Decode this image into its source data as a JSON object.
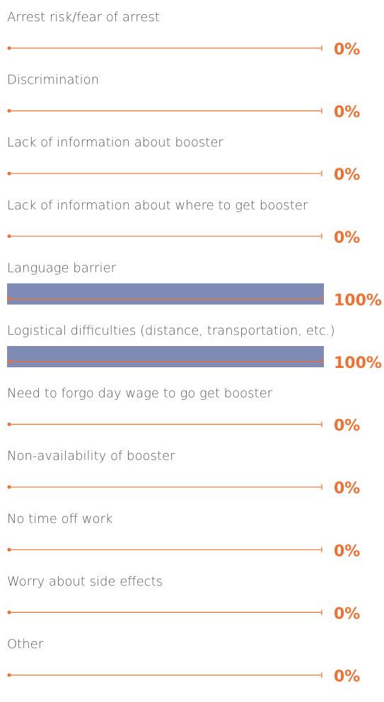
{
  "chart_data": {
    "type": "bar",
    "categories": [
      "Arrest risk/fear of arrest",
      "Discrimination",
      "Lack of information about booster",
      "Lack of information about where to get booster",
      "Language barrier",
      "Logistical difficulties (distance, transportation, etc.)",
      "Need to forgo day wage to go get booster",
      "Non-availability of booster",
      "No time off work",
      "Worry about side effects",
      "Other"
    ],
    "values": [
      0,
      0,
      0,
      0,
      100,
      100,
      0,
      0,
      0,
      0,
      0
    ],
    "value_labels": [
      "0%",
      "0%",
      "0%",
      "0%",
      "100%",
      "100%",
      "0%",
      "0%",
      "0%",
      "0%",
      "0%"
    ],
    "xlim": [
      0,
      100
    ],
    "color": "#7f8bb3",
    "line_color": "#f07030"
  }
}
